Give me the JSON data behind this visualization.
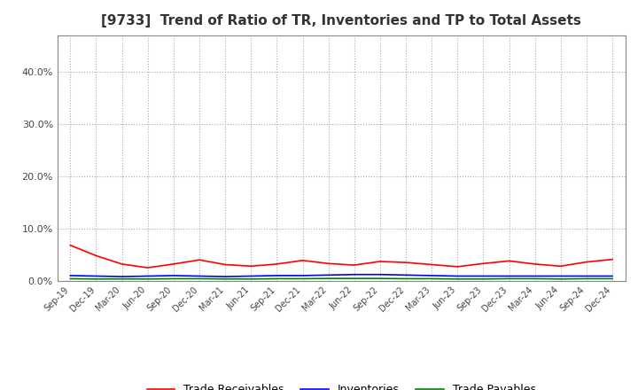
{
  "title": "[9733]  Trend of Ratio of TR, Inventories and TP to Total Assets",
  "title_fontsize": 11,
  "x_labels": [
    "Sep-19",
    "Dec-19",
    "Mar-20",
    "Jun-20",
    "Sep-20",
    "Dec-20",
    "Mar-21",
    "Jun-21",
    "Sep-21",
    "Dec-21",
    "Mar-22",
    "Jun-22",
    "Sep-22",
    "Dec-22",
    "Mar-23",
    "Jun-23",
    "Sep-23",
    "Dec-23",
    "Mar-24",
    "Jun-24",
    "Sep-24",
    "Dec-24"
  ],
  "trade_receivables": [
    6.8,
    4.8,
    3.2,
    2.5,
    3.2,
    4.0,
    3.1,
    2.8,
    3.2,
    3.9,
    3.3,
    3.0,
    3.7,
    3.5,
    3.1,
    2.7,
    3.3,
    3.8,
    3.2,
    2.8,
    3.6,
    4.1
  ],
  "inventories": [
    1.0,
    0.9,
    0.8,
    0.9,
    1.0,
    0.9,
    0.8,
    0.9,
    1.0,
    1.0,
    1.1,
    1.2,
    1.2,
    1.1,
    1.0,
    0.9,
    0.9,
    0.9,
    0.9,
    0.9,
    0.9,
    0.9
  ],
  "trade_payables": [
    0.4,
    0.35,
    0.35,
    0.35,
    0.4,
    0.4,
    0.35,
    0.35,
    0.4,
    0.4,
    0.45,
    0.45,
    0.45,
    0.4,
    0.4,
    0.35,
    0.35,
    0.4,
    0.4,
    0.35,
    0.4,
    0.4
  ],
  "line_colors": {
    "trade_receivables": "#ff0000",
    "inventories": "#0000ff",
    "trade_payables": "#008000"
  },
  "ylim": [
    0,
    47
  ],
  "yticks": [
    0,
    10,
    20,
    30,
    40
  ],
  "background_color": "#ffffff",
  "grid_color": "#aaaaaa",
  "legend_labels": [
    "Trade Receivables",
    "Inventories",
    "Trade Payables"
  ]
}
